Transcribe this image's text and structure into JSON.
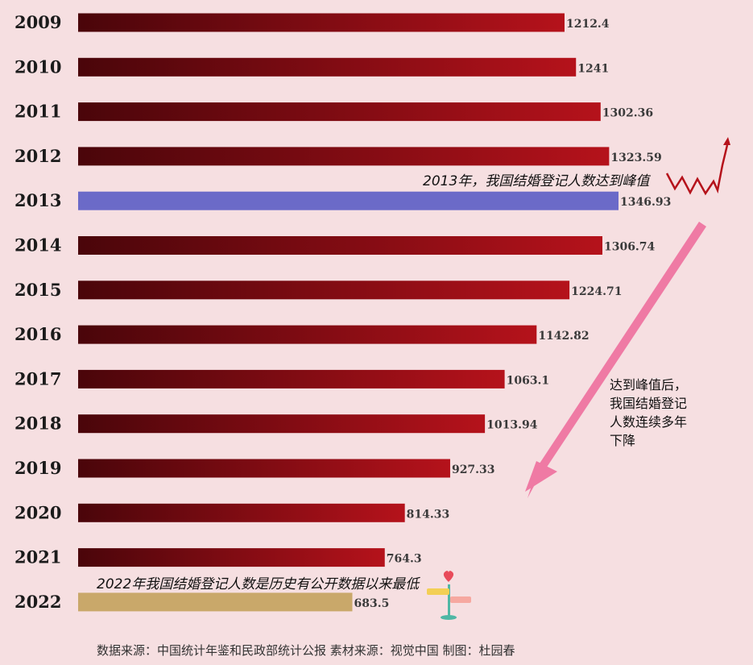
{
  "chart_data": {
    "type": "bar",
    "orientation": "horizontal",
    "categories": [
      "2009",
      "2010",
      "2011",
      "2012",
      "2013",
      "2014",
      "2015",
      "2016",
      "2017",
      "2018",
      "2019",
      "2020",
      "2021",
      "2022"
    ],
    "values": [
      1212.4,
      1241,
      1302.36,
      1323.59,
      1346.93,
      1306.74,
      1224.71,
      1142.82,
      1063.1,
      1013.94,
      927.33,
      814.33,
      764.3,
      683.5
    ],
    "value_labels": [
      "1212.4",
      "1241",
      "1302.36",
      "1323.59",
      "1346.93",
      "1306.74",
      "1224.71",
      "1142.82",
      "1063.1",
      "1013.94",
      "927.33",
      "814.33",
      "764.3",
      "683.5"
    ],
    "xlim": [
      0,
      1346.93
    ],
    "highlight": {
      "2013": "#6b6ac8",
      "2022": "#c9a86a"
    },
    "colors": {
      "bar_start": "#4a050a",
      "bar_end": "#b5121b",
      "background": "#f6dfe1",
      "arrow": "#ef7aa4"
    },
    "annotations": {
      "peak": "2013年，我国结婚登记人数达到峰值",
      "decline": [
        "达到峰值后，",
        "我国结婚登记",
        "人数连续多年",
        "下降"
      ],
      "lowest": "2022年我国结婚登记人数是历史有公开数据以来最低"
    }
  },
  "footer": {
    "source": "数据来源：中国统计年鉴和民政部统计公报   素材来源：视觉中国   制图：杜园春"
  }
}
